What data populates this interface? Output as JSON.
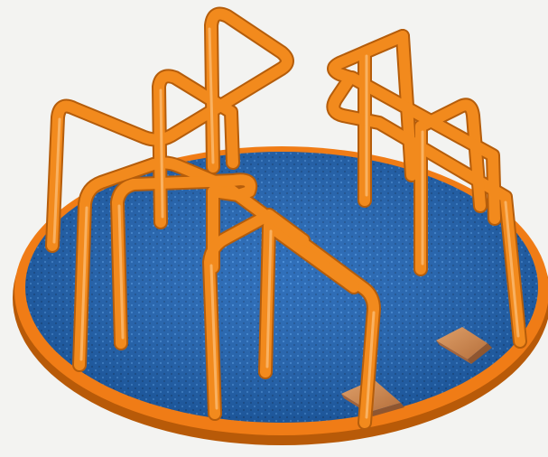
{
  "caption": {
    "text": ""
  },
  "scene": {
    "subject": "merry-go-round",
    "colors": {
      "background": "#f3f3f1",
      "deck_blue": "#1e63b4",
      "deck_pattern": "#3d86d6",
      "rim_orange": "#f07c16",
      "rim_shadow": "#b85a08",
      "bar_orange": "#f28a1d",
      "bar_shadow": "#b55d0b",
      "bar_highlight": "#ffd199",
      "wood_block": "#c9834a",
      "wood_dark": "#8f5630"
    }
  }
}
